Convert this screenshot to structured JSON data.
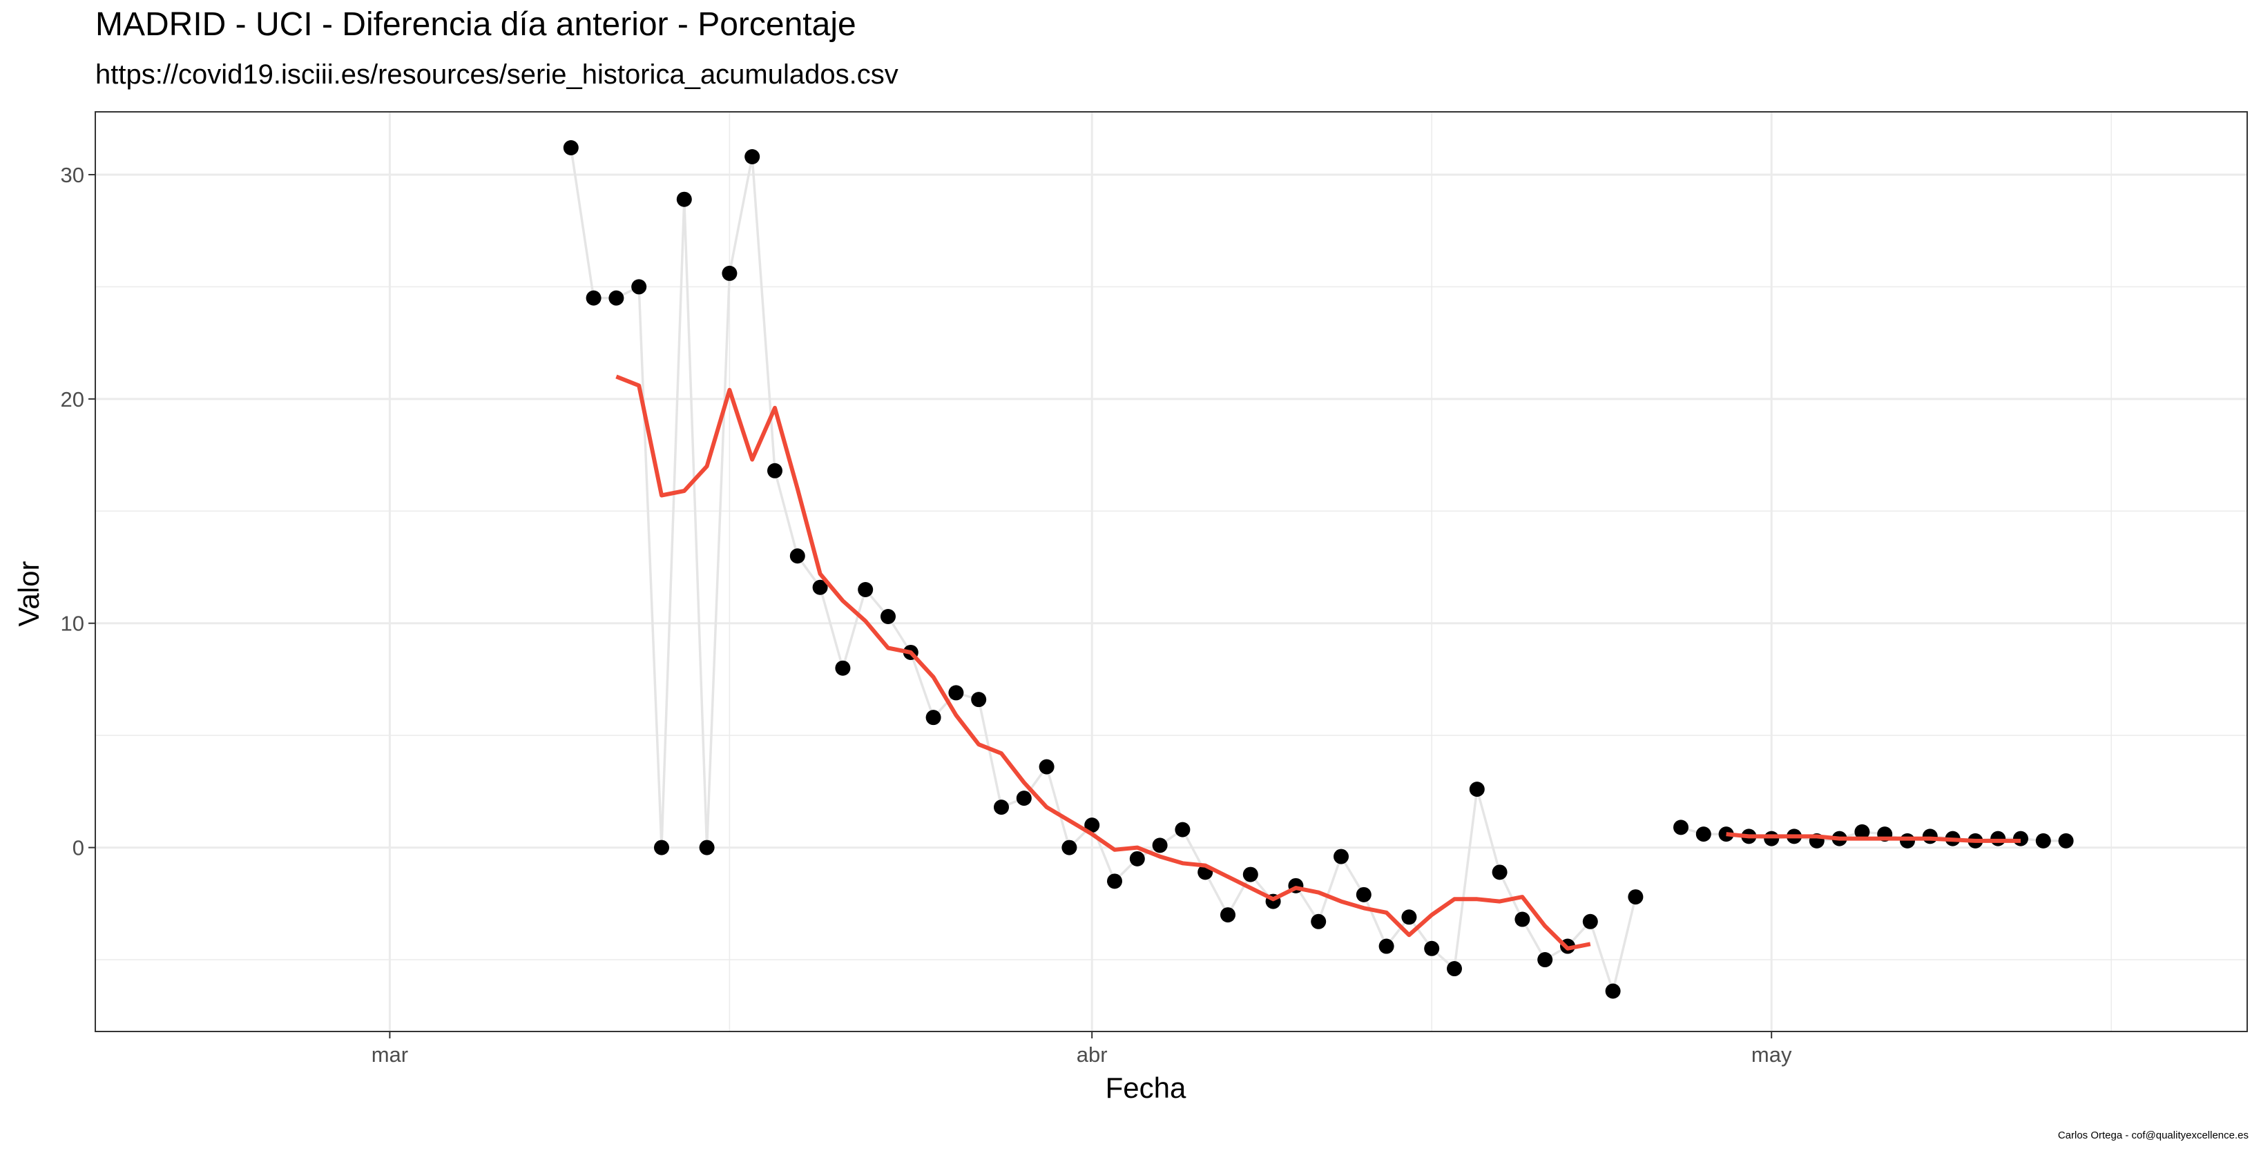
{
  "title": "MADRID - UCI - Diferencia día anterior - Porcentaje",
  "subtitle": "https://covid19.isciii.es/resources/serie_historica_acumulados.csv",
  "caption": "Carlos Ortega - cof@qualityexcellence.es",
  "colors": {
    "points": "#000000",
    "raw_line": "#e5e5e5",
    "smooth_line": "#f04a37",
    "grid": "#ebebeb",
    "panel_border": "#333333"
  },
  "chart_data": {
    "type": "line",
    "xlabel": "Fecha",
    "ylabel": "Valor",
    "xlim": [
      "2020-02-17",
      "2020-05-22"
    ],
    "ylim": [
      -8.2,
      32.8
    ],
    "x_ticks": [
      {
        "date": "2020-03-01",
        "label": "mar"
      },
      {
        "date": "2020-04-01",
        "label": "abr"
      },
      {
        "date": "2020-05-01",
        "label": "may"
      }
    ],
    "x_minor_ticks": [
      "2020-03-16",
      "2020-04-16",
      "2020-05-16"
    ],
    "y_ticks": [
      0,
      10,
      20,
      30
    ],
    "y_minor_ticks": [
      -5,
      5,
      15,
      25
    ],
    "grid": true,
    "series": [
      {
        "mark": "points-and-line",
        "x": [
          "2020-03-09",
          "2020-03-10",
          "2020-03-11",
          "2020-03-12",
          "2020-03-13",
          "2020-03-14",
          "2020-03-15",
          "2020-03-16",
          "2020-03-17",
          "2020-03-18",
          "2020-03-19",
          "2020-03-20",
          "2020-03-21",
          "2020-03-22",
          "2020-03-23",
          "2020-03-24",
          "2020-03-25",
          "2020-03-26",
          "2020-03-27",
          "2020-03-28",
          "2020-03-29",
          "2020-03-30",
          "2020-03-31",
          "2020-04-01",
          "2020-04-02",
          "2020-04-03",
          "2020-04-04",
          "2020-04-05",
          "2020-04-06",
          "2020-04-07",
          "2020-04-08",
          "2020-04-09",
          "2020-04-10",
          "2020-04-11",
          "2020-04-12",
          "2020-04-13",
          "2020-04-14",
          "2020-04-15",
          "2020-04-16",
          "2020-04-17",
          "2020-04-18",
          "2020-04-19",
          "2020-04-20",
          "2020-04-21",
          "2020-04-22",
          "2020-04-23",
          "2020-04-24",
          "2020-04-25",
          "2020-04-26",
          "2020-04-27",
          "2020-04-28",
          "2020-04-29",
          "2020-04-30",
          "2020-05-01",
          "2020-05-02",
          "2020-05-03",
          "2020-05-04",
          "2020-05-05",
          "2020-05-06",
          "2020-05-07",
          "2020-05-08",
          "2020-05-09",
          "2020-05-10",
          "2020-05-11",
          "2020-05-12",
          "2020-05-13",
          "2020-05-14"
        ],
        "y": [
          31.2,
          24.5,
          24.5,
          25.0,
          0.0,
          28.9,
          0.0,
          25.6,
          30.8,
          16.8,
          13.0,
          11.6,
          8.0,
          11.5,
          10.3,
          8.7,
          5.8,
          6.9,
          6.6,
          1.8,
          2.2,
          3.6,
          0.0,
          1.0,
          -1.5,
          -0.5,
          0.1,
          0.8,
          -1.1,
          -3.0,
          -1.2,
          -2.4,
          -1.7,
          -3.3,
          -0.4,
          -2.1,
          -4.4,
          -3.1,
          -4.5,
          -5.4,
          2.6,
          -1.1,
          -3.2,
          -5.0,
          -4.4,
          -3.3,
          -6.4,
          -2.2,
          null,
          0.9,
          0.6,
          0.6,
          0.5,
          0.4,
          0.5,
          0.3,
          0.4,
          0.7,
          0.6,
          0.3,
          0.5,
          0.4,
          0.3,
          0.4,
          0.4,
          0.3,
          0.3
        ]
      },
      {
        "mark": "smoothed-line",
        "x": [
          "2020-03-11",
          "2020-03-12",
          "2020-03-13",
          "2020-03-14",
          "2020-03-15",
          "2020-03-16",
          "2020-03-17",
          "2020-03-18",
          "2020-03-19",
          "2020-03-20",
          "2020-03-21",
          "2020-03-22",
          "2020-03-23",
          "2020-03-24",
          "2020-03-25",
          "2020-03-26",
          "2020-03-27",
          "2020-03-28",
          "2020-03-29",
          "2020-03-30",
          "2020-03-31",
          "2020-04-01",
          "2020-04-02",
          "2020-04-03",
          "2020-04-04",
          "2020-04-05",
          "2020-04-06",
          "2020-04-07",
          "2020-04-08",
          "2020-04-09",
          "2020-04-10",
          "2020-04-11",
          "2020-04-12",
          "2020-04-13",
          "2020-04-14",
          "2020-04-15",
          "2020-04-16",
          "2020-04-17",
          "2020-04-18",
          "2020-04-19",
          "2020-04-20",
          "2020-04-21",
          "2020-04-22",
          "2020-04-23"
        ],
        "y": [
          21.0,
          20.6,
          15.7,
          15.9,
          17.0,
          20.4,
          17.3,
          19.6,
          16.0,
          12.2,
          11.0,
          10.1,
          8.9,
          8.7,
          7.6,
          5.9,
          4.6,
          4.2,
          2.9,
          1.8,
          1.2,
          0.6,
          -0.1,
          0.0,
          -0.4,
          -0.7,
          -0.8,
          -1.3,
          -1.8,
          -2.3,
          -1.8,
          -2.0,
          -2.4,
          -2.7,
          -2.9,
          -3.9,
          -3.0,
          -2.3,
          -2.3,
          -2.4,
          -2.2,
          -3.5,
          -4.5,
          -4.3
        ]
      },
      {
        "mark": "smoothed-line",
        "x": [
          "2020-04-29",
          "2020-04-30",
          "2020-05-01",
          "2020-05-02",
          "2020-05-03",
          "2020-05-04",
          "2020-05-05",
          "2020-05-06",
          "2020-05-07",
          "2020-05-08",
          "2020-05-09",
          "2020-05-10",
          "2020-05-11",
          "2020-05-12"
        ],
        "y": [
          0.6,
          0.5,
          0.5,
          0.5,
          0.5,
          0.4,
          0.4,
          0.4,
          0.4,
          0.4,
          0.35,
          0.3,
          0.3,
          0.3
        ]
      }
    ]
  }
}
